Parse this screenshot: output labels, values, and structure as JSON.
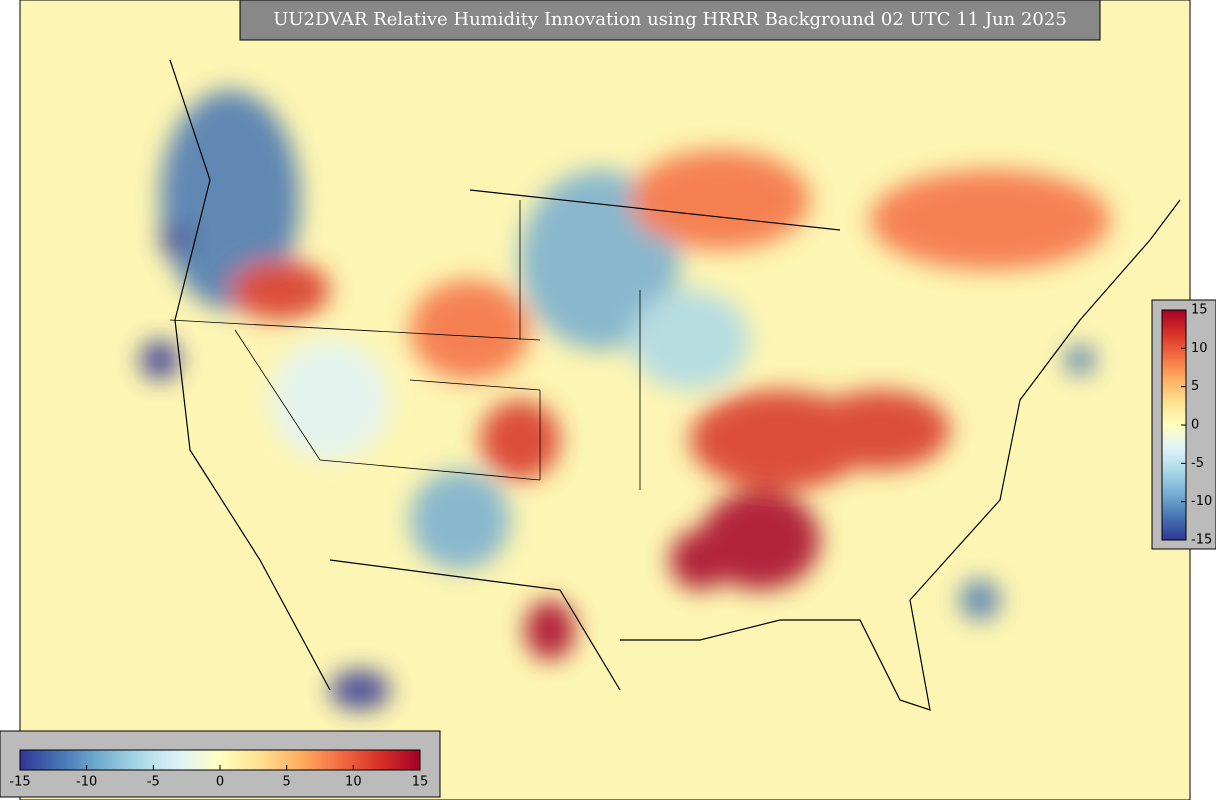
{
  "title": "UU2DVAR Relative Humidity Innovation using HRRR Background 02 UTC 11 Jun 2025",
  "colormap": [
    "#313695",
    "#4575b4",
    "#74add1",
    "#abd9e9",
    "#e0f3f8",
    "#ffffbf",
    "#fee090",
    "#fdae61",
    "#f46d43",
    "#d73027",
    "#a50026"
  ],
  "colorbars": [
    {
      "orientation": "vertical",
      "lim": [
        -15,
        15
      ],
      "ticks": [
        -15,
        -10,
        -5,
        0,
        5,
        10,
        15
      ]
    },
    {
      "orientation": "horizontal",
      "lim": [
        -15,
        15
      ],
      "ticks": [
        -15,
        -10,
        -5,
        0,
        5,
        10,
        15
      ]
    }
  ]
}
